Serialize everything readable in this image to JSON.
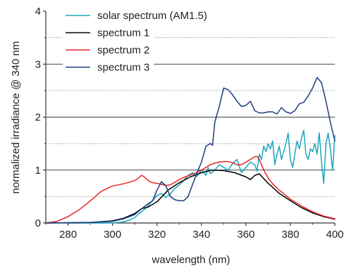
{
  "chart_data": {
    "type": "line",
    "xlabel": "wavelength (nm)",
    "ylabel": "normalized irradiance @ 340 nm",
    "xlim": [
      270,
      400
    ],
    "ylim": [
      0,
      4
    ],
    "x_ticks": [
      280,
      300,
      320,
      340,
      360,
      380,
      400
    ],
    "y_ticks": [
      0,
      1,
      2,
      3,
      4
    ],
    "grid": "horizontal solid at integer values, dotted at half values",
    "legend_position": "top-left",
    "series": [
      {
        "name": "solar spectrum  (AM1.5)",
        "color": "#1aa6bc",
        "x": [
          280,
          300,
          305,
          308,
          310,
          312,
          315,
          318,
          320,
          322,
          324,
          326,
          328,
          330,
          332,
          334,
          336,
          338,
          340,
          342,
          343,
          344,
          346,
          348,
          350,
          352,
          354,
          356,
          358,
          360,
          362,
          364,
          365,
          366,
          367,
          368,
          369,
          370,
          371,
          372,
          373,
          374,
          375,
          376,
          377,
          378,
          379,
          380,
          381,
          382,
          383,
          384,
          385,
          386,
          387,
          388,
          389,
          390,
          391,
          392,
          393,
          394,
          395,
          396,
          397,
          398,
          399,
          400
        ],
        "y": [
          0.0,
          0.0,
          0.02,
          0.06,
          0.1,
          0.18,
          0.28,
          0.42,
          0.52,
          0.56,
          0.48,
          0.55,
          0.65,
          0.72,
          0.8,
          0.9,
          0.95,
          0.88,
          1.0,
          0.9,
          1.05,
          0.93,
          1.0,
          1.1,
          1.05,
          1.0,
          1.12,
          1.2,
          0.95,
          1.05,
          1.15,
          1.1,
          0.98,
          1.3,
          1.2,
          1.45,
          1.35,
          1.5,
          1.4,
          1.55,
          1.1,
          1.3,
          1.45,
          1.2,
          1.35,
          1.5,
          1.7,
          1.2,
          1.05,
          1.3,
          1.55,
          1.4,
          1.6,
          1.75,
          1.3,
          1.2,
          1.4,
          1.35,
          1.5,
          1.3,
          1.7,
          1.15,
          0.75,
          1.5,
          1.7,
          1.4,
          1.0,
          1.65
        ]
      },
      {
        "name": "spectrum 1",
        "color": "#000000",
        "x": [
          270,
          290,
          300,
          305,
          310,
          313,
          316,
          320,
          325,
          330,
          335,
          340,
          345,
          350,
          355,
          360,
          362,
          364,
          366,
          370,
          375,
          380,
          385,
          390,
          395,
          400
        ],
        "y": [
          0.0,
          0.01,
          0.04,
          0.09,
          0.18,
          0.27,
          0.3,
          0.4,
          0.62,
          0.76,
          0.87,
          0.95,
          1.0,
          0.99,
          0.95,
          0.87,
          0.82,
          0.9,
          0.93,
          0.75,
          0.56,
          0.42,
          0.29,
          0.19,
          0.12,
          0.07
        ]
      },
      {
        "name": "spectrum 2",
        "color": "#e8262a",
        "x": [
          270,
          275,
          280,
          285,
          290,
          295,
          300,
          305,
          310,
          312,
          313,
          314,
          316,
          318,
          320,
          322,
          324,
          326,
          328,
          330,
          332,
          334,
          336,
          338,
          340,
          342,
          344,
          346,
          348,
          350,
          352,
          354,
          356,
          358,
          360,
          362,
          364,
          365,
          366,
          368,
          370,
          372,
          375,
          380,
          385,
          390,
          395,
          400
        ],
        "y": [
          0.0,
          0.03,
          0.12,
          0.25,
          0.42,
          0.6,
          0.7,
          0.74,
          0.8,
          0.86,
          0.9,
          0.88,
          0.8,
          0.76,
          0.75,
          0.73,
          0.71,
          0.72,
          0.77,
          0.82,
          0.86,
          0.89,
          0.92,
          0.96,
          1.0,
          1.05,
          1.1,
          1.13,
          1.15,
          1.16,
          1.16,
          1.14,
          1.1,
          1.1,
          1.15,
          1.2,
          1.25,
          1.26,
          1.2,
          1.0,
          0.85,
          0.74,
          0.62,
          0.45,
          0.32,
          0.21,
          0.13,
          0.08
        ]
      },
      {
        "name": "spectrum 3",
        "color": "#1e3c80",
        "x": [
          270,
          290,
          300,
          305,
          310,
          314,
          318,
          320,
          322,
          324,
          326,
          328,
          330,
          332,
          334,
          336,
          338,
          340,
          342,
          344,
          345,
          346,
          348,
          350,
          352,
          354,
          356,
          358,
          360,
          362,
          364,
          366,
          368,
          370,
          372,
          374,
          376,
          378,
          380,
          382,
          384,
          386,
          388,
          390,
          392,
          394,
          396,
          398,
          400
        ],
        "y": [
          0.0,
          0.01,
          0.03,
          0.08,
          0.16,
          0.3,
          0.42,
          0.62,
          0.78,
          0.7,
          0.5,
          0.44,
          0.42,
          0.42,
          0.5,
          0.73,
          0.95,
          1.15,
          1.45,
          1.5,
          1.47,
          1.9,
          2.2,
          2.55,
          2.52,
          2.42,
          2.3,
          2.2,
          2.22,
          2.3,
          2.12,
          2.08,
          2.08,
          2.1,
          2.1,
          2.06,
          2.18,
          2.1,
          2.07,
          2.12,
          2.25,
          2.28,
          2.4,
          2.55,
          2.75,
          2.65,
          2.3,
          1.9,
          1.55
        ]
      }
    ]
  }
}
